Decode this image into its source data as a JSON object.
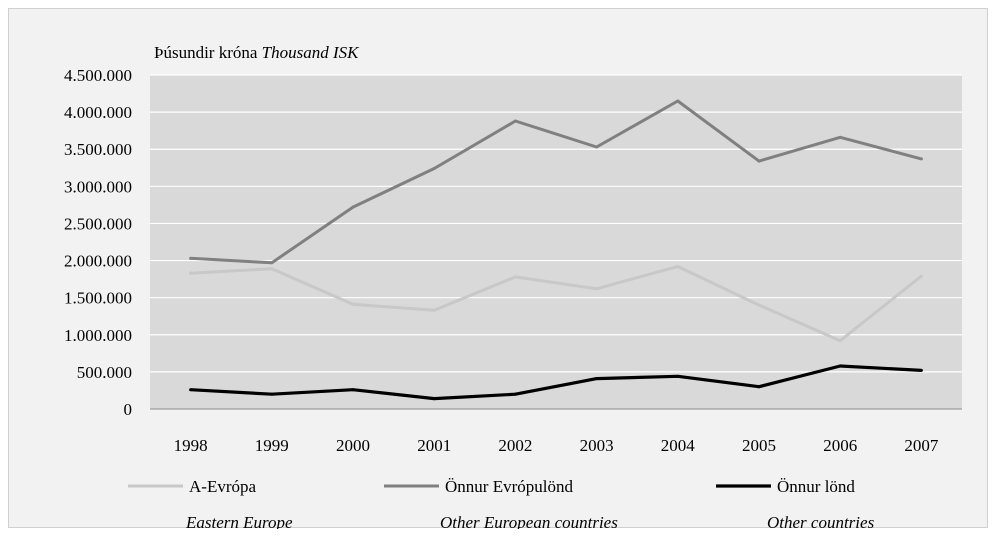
{
  "chart_data": {
    "type": "line",
    "unit_label": {
      "is": "Þúsundir króna",
      "en": "Thousand ISK"
    },
    "categories": [
      "1998",
      "1999",
      "2000",
      "2001",
      "2002",
      "2003",
      "2004",
      "2005",
      "2006",
      "2007"
    ],
    "ylim": [
      0,
      4500000
    ],
    "yticks": [
      {
        "value": 0,
        "label": "0"
      },
      {
        "value": 500000,
        "label": "500.000"
      },
      {
        "value": 1000000,
        "label": "1.000.000"
      },
      {
        "value": 1500000,
        "label": "1.500.000"
      },
      {
        "value": 2000000,
        "label": "2.000.000"
      },
      {
        "value": 2500000,
        "label": "2.500.000"
      },
      {
        "value": 3000000,
        "label": "3.000.000"
      },
      {
        "value": 3500000,
        "label": "3.500.000"
      },
      {
        "value": 4000000,
        "label": "4.000.000"
      },
      {
        "value": 4500000,
        "label": "4.500.000"
      }
    ],
    "grid": true,
    "legend_position": "bottom",
    "series": [
      {
        "name": "A-Evrópa",
        "name_en": "Eastern Europe",
        "color": "#c8c8c8",
        "values": [
          1830000,
          1890000,
          1410000,
          1330000,
          1780000,
          1620000,
          1920000,
          1400000,
          920000,
          1790000
        ]
      },
      {
        "name": "Önnur Evrópulönd",
        "name_en": "Other European countries",
        "color": "#808080",
        "values": [
          2030000,
          1970000,
          2720000,
          3240000,
          3880000,
          3530000,
          4150000,
          3340000,
          3660000,
          3370000
        ]
      },
      {
        "name": "Önnur lönd",
        "name_en": "Other countries",
        "color": "#000000",
        "values": [
          260000,
          200000,
          260000,
          140000,
          200000,
          410000,
          440000,
          300000,
          580000,
          520000
        ]
      }
    ]
  },
  "colors": {
    "plot_background": "#d9d9d9",
    "frame_background": "#f2f2f2",
    "gridline": "#ffffff"
  }
}
